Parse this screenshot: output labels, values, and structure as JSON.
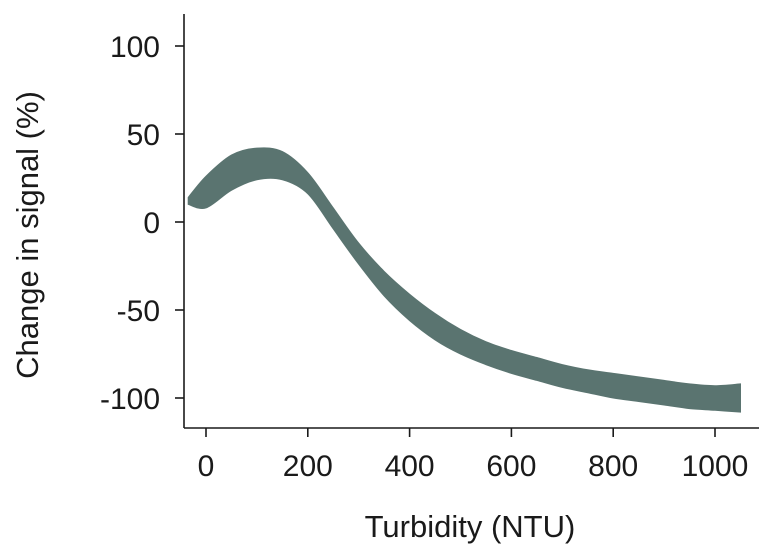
{
  "chart_data": {
    "type": "area",
    "title": "",
    "xlabel": "Turbidity (NTU)",
    "ylabel": "Change in signal (%)",
    "xlim": [
      -50,
      1060
    ],
    "ylim": [
      -120,
      118
    ],
    "xticks": [
      0,
      200,
      400,
      600,
      800,
      1000
    ],
    "yticks": [
      100,
      50,
      0,
      -50,
      -100
    ],
    "band_color": "#5a7470",
    "grid": false,
    "legend": "none",
    "series": [
      {
        "x": [
          -35,
          0,
          50,
          100,
          150,
          200,
          250,
          300,
          350,
          400,
          450,
          500,
          550,
          600,
          650,
          700,
          750,
          800,
          850,
          900,
          950,
          1000,
          1050
        ],
        "upper": [
          14,
          26,
          38,
          42,
          40,
          28,
          8,
          -12,
          -28,
          -41,
          -52,
          -61,
          -68,
          -73,
          -77,
          -81,
          -84,
          -86,
          -88,
          -90,
          -92,
          -93,
          -92
        ],
        "lower": [
          10,
          8,
          18,
          24,
          24,
          16,
          -4,
          -24,
          -42,
          -56,
          -67,
          -75,
          -81,
          -86,
          -90,
          -94,
          -97,
          -100,
          -102,
          -104,
          -106,
          -107,
          -108
        ]
      }
    ]
  }
}
